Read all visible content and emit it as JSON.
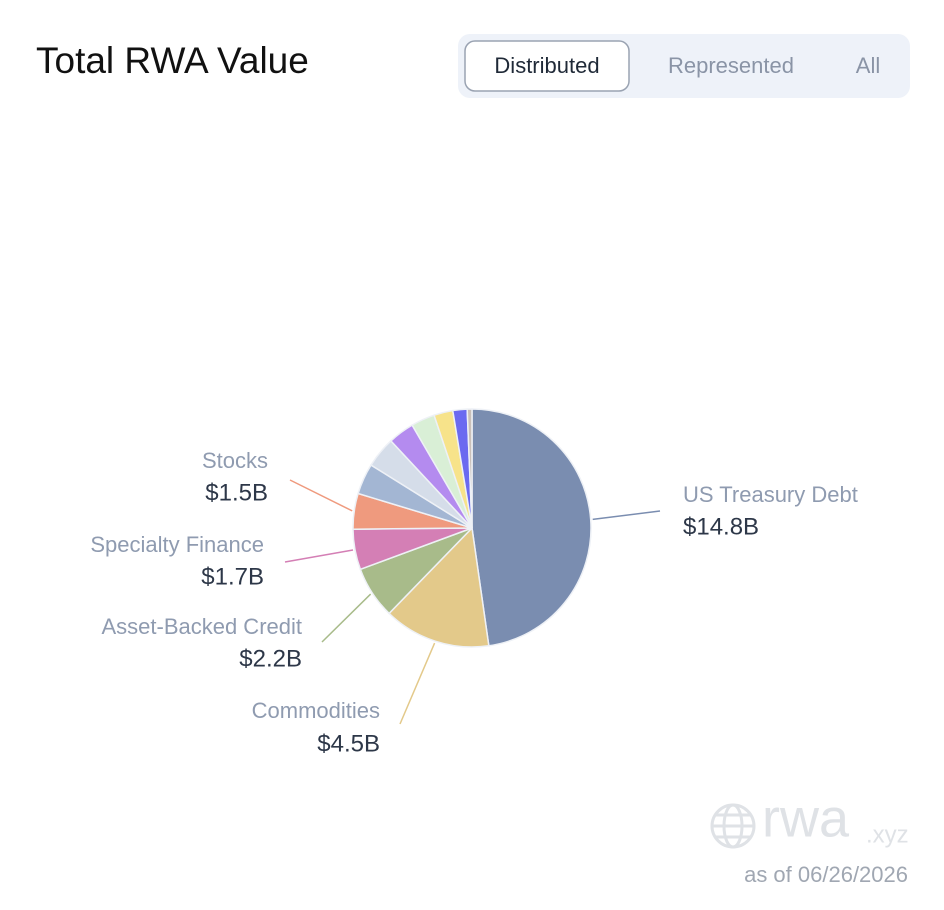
{
  "chart_data": {
    "type": "pie",
    "title": "Total RWA Value",
    "categories": [
      "US Treasury Debt",
      "Commodities",
      "Asset-Backed Credit",
      "Specialty Finance",
      "Stocks",
      null,
      null,
      null,
      null,
      null,
      null,
      null
    ],
    "values": [
      14.8,
      4.5,
      2.2,
      1.7,
      1.5,
      1.3,
      1.3,
      1.1,
      1.0,
      0.8,
      0.6,
      0.2
    ],
    "value_labels": [
      "$14.8B",
      "$4.5B",
      "$2.2B",
      "$1.7B",
      "$1.5B",
      null,
      null,
      null,
      null,
      null,
      null,
      null
    ],
    "colors": [
      "#7a8db0",
      "#e3c98a",
      "#a8bb8a",
      "#d47fb5",
      "#ef9a7e",
      "#a3b6d3",
      "#d5dde9",
      "#b48bef",
      "#d9efd6",
      "#f7e38a",
      "#6b6af0",
      "#c9bfb8"
    ]
  },
  "tabs": [
    "Distributed",
    "Represented",
    "All"
  ],
  "footer": {
    "brand": "rwa",
    "brand_suffix": ".xyz",
    "as_of": "as of 06/26/2026"
  }
}
